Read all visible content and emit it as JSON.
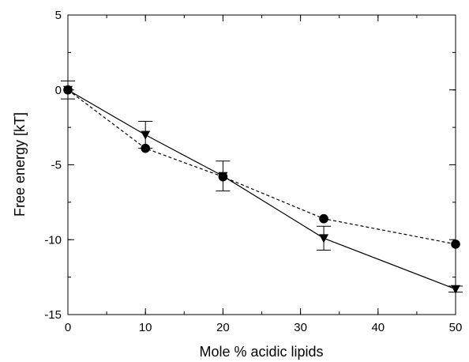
{
  "chart_data": {
    "type": "line",
    "xlabel": "Mole % acidic lipids",
    "ylabel": "Free energy [kT]",
    "xlim": [
      0,
      50
    ],
    "ylim": [
      -15,
      5
    ],
    "x_ticks": [
      0,
      10,
      20,
      30,
      40,
      50
    ],
    "y_ticks": [
      5,
      0,
      -5,
      -10,
      -15
    ],
    "x_minor_step": 5,
    "y_minor_step": 2.5,
    "grid": false,
    "series": [
      {
        "style": "solid",
        "marker": "triangle-down",
        "x": [
          0,
          10,
          20,
          33,
          50
        ],
        "y": [
          0,
          -3.0,
          -5.75,
          -9.9,
          -13.3
        ],
        "error": [
          0.6,
          0.9,
          1.0,
          0.8,
          0.2
        ]
      },
      {
        "style": "dashed",
        "marker": "circle",
        "x": [
          0,
          10,
          20,
          33,
          50
        ],
        "y": [
          0,
          -3.9,
          -5.8,
          -8.6,
          -10.3
        ],
        "error": [
          0,
          0,
          0,
          0,
          0
        ]
      }
    ]
  }
}
